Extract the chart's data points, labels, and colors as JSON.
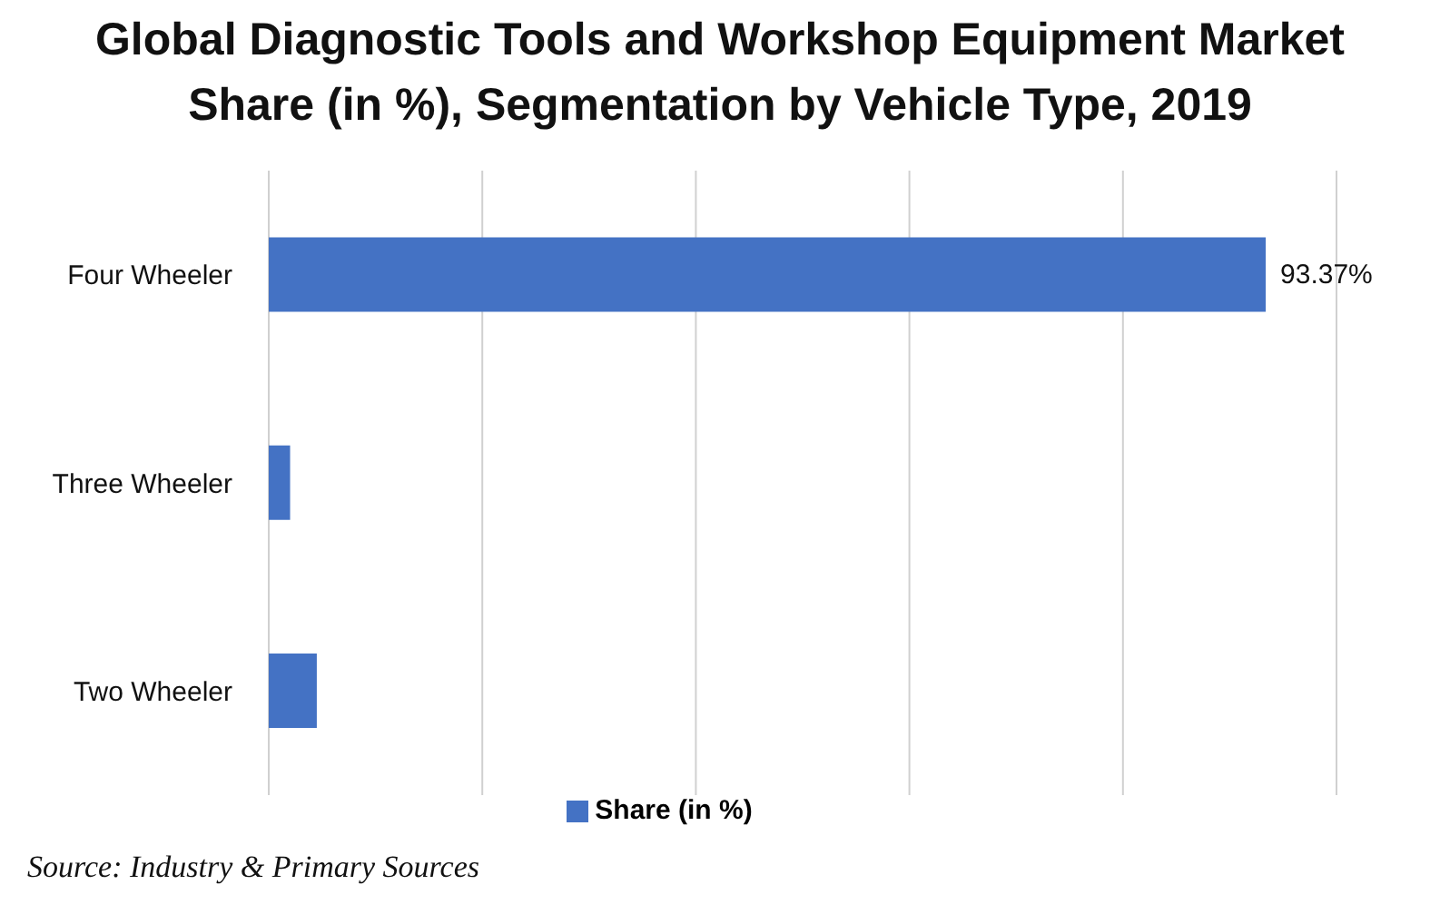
{
  "chart_data": {
    "type": "bar",
    "orientation": "horizontal",
    "title": "Global Diagnostic Tools and Workshop Equipment Market Share (in %), Segmentation by Vehicle Type, 2019",
    "categories": [
      "Four Wheeler",
      "Three Wheeler",
      "Two Wheeler"
    ],
    "series": [
      {
        "name": "Share (in %)",
        "color": "#4472c4",
        "values": [
          93.37,
          2.0,
          4.5
        ],
        "value_labels": [
          "93.37%",
          null,
          null
        ]
      }
    ],
    "tick_labels": "y",
    "grid": "x",
    "legend": "bottom",
    "annotations": [
      "Source: Industry & Primary Sources"
    ]
  }
}
